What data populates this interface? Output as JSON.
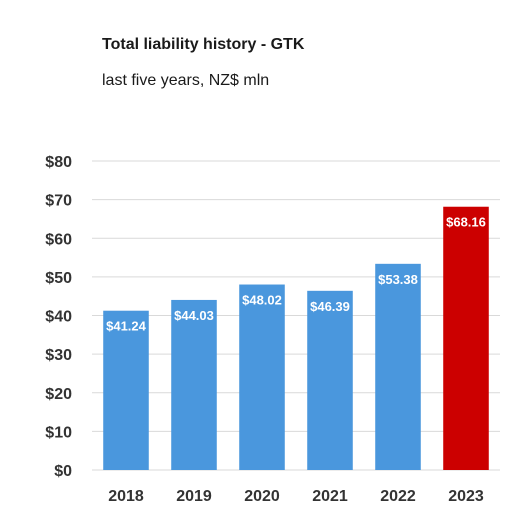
{
  "chart_data": {
    "type": "bar",
    "title": "Total liability history - GTK",
    "subtitle": "last five years, NZ$ mln",
    "categories": [
      "2018",
      "2019",
      "2020",
      "2021",
      "2022",
      "2023"
    ],
    "values": [
      41.24,
      44.03,
      48.02,
      46.39,
      53.38,
      68.16
    ],
    "data_labels": [
      "$41.24",
      "$44.03",
      "$48.02",
      "$46.39",
      "$53.38",
      "$68.16"
    ],
    "y_ticks": [
      0,
      10,
      20,
      30,
      40,
      50,
      60,
      70,
      80
    ],
    "y_tick_labels": [
      "$0",
      "$10",
      "$20",
      "$30",
      "$40",
      "$50",
      "$60",
      "$70",
      "$80"
    ],
    "ylim": [
      0,
      80
    ],
    "grid": true,
    "legend": "none",
    "colors": {
      "default_bar": "#4a97dd",
      "highlight_bar": "#cc0000",
      "gridline": "#d9d9d9"
    },
    "highlight_category": "2023"
  }
}
